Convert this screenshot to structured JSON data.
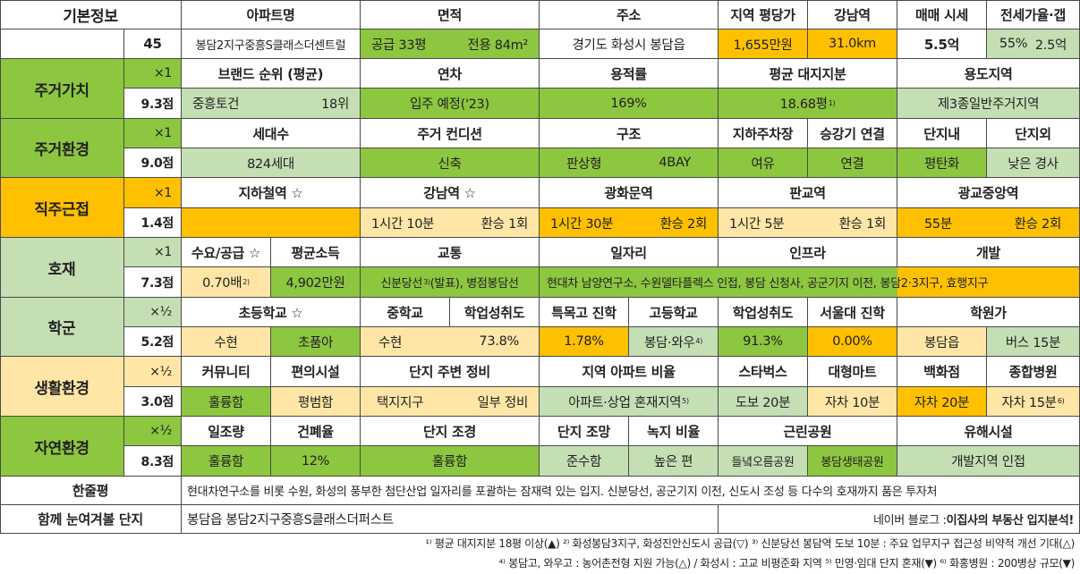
{
  "colors": {
    "green": "#8dc63f",
    "light_green": "#c5dfb4",
    "orange": "#ffc000",
    "light_yellow": "#ffe6a6"
  },
  "basic": {
    "label": "기본정보",
    "number": "45",
    "headers": [
      "아파트명",
      "면적",
      "주소",
      "지역 평당가",
      "강남역",
      "매매 시세",
      "전세가율·갭"
    ],
    "apt_name": "봉담2지구중흥S클래스더센트럴",
    "area_supply": "공급 33평",
    "area_exclusive": "전용 84m²",
    "address": "경기도 화성시 봉담읍",
    "price_per_pyeong": "1,655만원",
    "gangnam_distance": "31.0km",
    "sale_price": "5.5억",
    "jeonse_ratio": "55%",
    "gap": "2.5억"
  },
  "categories": [
    {
      "name": "주거가치",
      "weight": "×1",
      "score": "9.3점"
    },
    {
      "name": "주거환경",
      "weight": "×1",
      "score": "9.0점"
    },
    {
      "name": "직주근접",
      "weight": "×1",
      "score": "1.4점"
    },
    {
      "name": "호재",
      "weight": "×1",
      "score": "7.3점"
    },
    {
      "name": "학군",
      "weight": "×½",
      "score": "5.2점"
    },
    {
      "name": "생활환경",
      "weight": "×½",
      "score": "3.0점"
    },
    {
      "name": "자연환경",
      "weight": "×½",
      "score": "8.3점"
    }
  ],
  "value": {
    "headers": [
      "브랜드 순위 (평균)",
      "연차",
      "용적률",
      "평균 대지지분",
      "용도지역"
    ],
    "brand": "중흥토건",
    "brand_rank": "18위",
    "age": "입주 예정('23)",
    "far": "169%",
    "land_share": "18.68평",
    "land_share_note": "1)",
    "zoning": "제3종일반주거지역"
  },
  "env": {
    "headers": [
      "세대수",
      "주거 컨디션",
      "구조",
      "지하주차장",
      "승강기 연결",
      "단지내",
      "단지외"
    ],
    "households": "824세대",
    "condition": "신축",
    "structure_type": "판상형",
    "bay": "4BAY",
    "parking": "여유",
    "elevator": "연결",
    "inside": "평탄화",
    "outside": "낮은 경사"
  },
  "commute": {
    "headers": [
      "지하철역 ☆",
      "강남역 ☆",
      "광화문역",
      "판교역",
      "광교중앙역"
    ],
    "gangnam_time": "1시간 10분",
    "gangnam_transfer": "환승 1회",
    "gwanghwamun_time": "1시간 30분",
    "gwanghwamun_transfer": "환승 2회",
    "pangyo_time": "1시간 5분",
    "pangyo_transfer": "환승 1회",
    "gwanggyo_time": "55분",
    "gwanggyo_transfer": "환승 2회"
  },
  "develop": {
    "headers": [
      "수요/공급 ☆",
      "평균소득",
      "교통",
      "일자리",
      "인프라",
      "개발"
    ],
    "supply_ratio": "0.70배",
    "supply_note": "2)",
    "income": "4,902만원",
    "transport": "신분당선",
    "transport_note": "3)",
    "transport_rest": " (발표), 병점봉담선",
    "jobs_infra": "현대차 남양연구소, 수원델타플렉스 인접, 봉담 신청사, 공군기지 이전, 봉담2·3지구, 효행지구"
  },
  "school": {
    "headers": [
      "초등학교 ☆",
      "중학교",
      "학업성취도",
      "특목고 진학",
      "고등학교",
      "학업성취도",
      "서울대 진학",
      "학원가"
    ],
    "elem_name": "수현",
    "elem_type": "초품아",
    "middle": "수현",
    "middle_achievement": "73.8%",
    "special_high": "1.78%",
    "high": "봉담·와우",
    "high_note": "4)",
    "high_achievement": "91.3%",
    "snu": "0.00%",
    "academy_area": "봉담읍",
    "academy_bus": "버스 15분"
  },
  "living": {
    "headers": [
      "커뮤니티",
      "편의시설",
      "단지 주변 정비",
      "지역 아파트 비율",
      "스타벅스",
      "대형마트",
      "백화점",
      "종합병원"
    ],
    "community": "훌륭함",
    "convenience": "평범함",
    "surround_type": "택지지구",
    "surround_level": "일부 정비",
    "apt_ratio": "아파트·상업 혼재지역",
    "apt_ratio_note": "5)",
    "starbucks": "도보 20분",
    "mart": "자차 10분",
    "dept": "자차 20분",
    "hospital": "자차 15분",
    "hospital_note": "6)"
  },
  "nature": {
    "headers": [
      "일조량",
      "건폐율",
      "단지 조경",
      "단지 조망",
      "녹지 비율",
      "근린공원",
      "유해시설"
    ],
    "sunlight": "훌륭함",
    "coverage": "12%",
    "landscape": "훌륭함",
    "view": "준수함",
    "green_ratio": "높은 편",
    "park1": "들녘오름공원",
    "park2": "봉담생태공원",
    "hazard": "개발지역 인접"
  },
  "summary": {
    "label": "한줄평",
    "text": "현대차연구소를 비롯 수원, 화성의 풍부한 첨단산업 일자리를 포괄하는 잠재력 있는 입지. 신분당선, 공군기지 이전, 신도시 조성 등 다수의 호재까지 품은 투자처"
  },
  "related": {
    "label": "함께 눈여겨볼 단지",
    "text": "봉담읍 봉담2지구중흥S클래스더퍼스트",
    "blog_prefix": "네이버 블로그 : ",
    "blog_name": "이집사의 부동산 입지분석!"
  },
  "footnotes": {
    "line1": "¹⁾ 평균 대지지분 18평 이상(▲) ²⁾ 화성봉담3지구, 화성진안신도시 공급(▽) ³⁾ 신분당선 봉담역 도보 10분 : 주요 업무지구 접근성 비약적 개선 기대(△)",
    "line2": "⁴⁾ 봉담고, 와우고 : 농어촌전형 지원 가능(△) / 화성시 : 고교 비평준화 지역 ⁵⁾ 민영·임대 단지 혼재(▼) ⁶⁾ 화홍병원 : 200병상 규모(▼)"
  }
}
